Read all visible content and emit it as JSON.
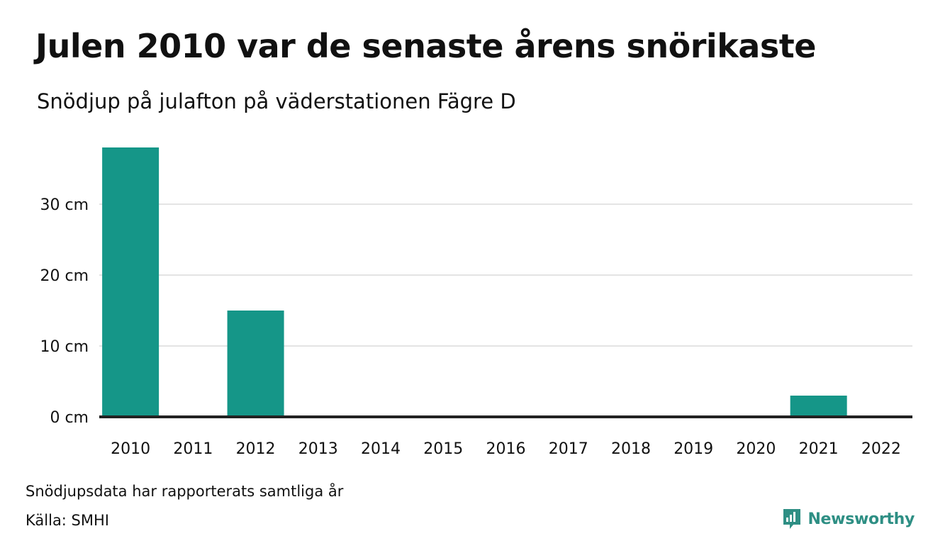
{
  "colors": {
    "bar": "#159688",
    "grid": "#e4e4e4",
    "baseline": "#222222",
    "logo": "#2e8f84"
  },
  "header": {
    "title": "Julen 2010 var de senaste årens snörikaste",
    "subtitle": "Snödjup på julafton på väderstationen Fägre D"
  },
  "footer": {
    "note": "Snödjupsdata har rapporterats samtliga år",
    "source": "Källa: SMHI",
    "logo_text": "Newsworthy",
    "logo_icon": "newsworthy-chart-bubble-icon"
  },
  "chart_data": {
    "type": "bar",
    "title": "Julen 2010 var de senaste årens snörikaste",
    "subtitle": "Snödjup på julafton på väderstationen Fägre D",
    "xlabel": "",
    "ylabel": "",
    "categories": [
      "2010",
      "2011",
      "2012",
      "2013",
      "2014",
      "2015",
      "2016",
      "2017",
      "2018",
      "2019",
      "2020",
      "2021",
      "2022"
    ],
    "values": [
      38,
      0,
      15,
      0,
      0,
      0,
      0,
      0,
      0,
      0,
      0,
      3,
      0
    ],
    "unit": "cm",
    "ylim": [
      0,
      38
    ],
    "yticks": [
      0,
      10,
      20,
      30
    ],
    "ytick_labels": [
      "0 cm",
      "10 cm",
      "20 cm",
      "30 cm"
    ],
    "grid": true,
    "legend": "none"
  }
}
